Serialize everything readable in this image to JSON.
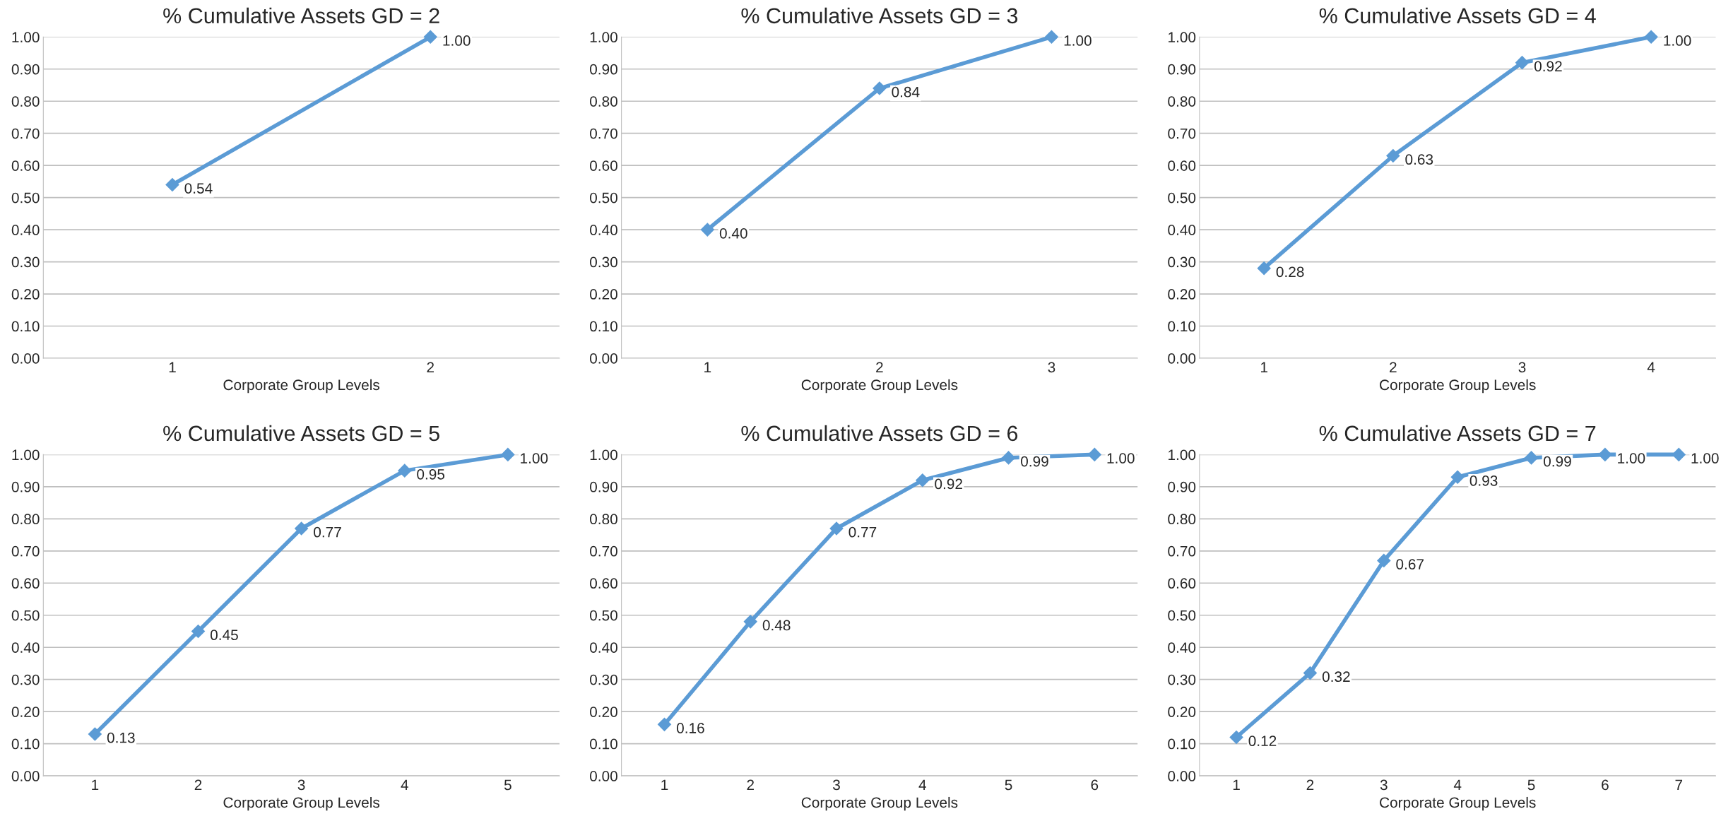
{
  "chart_data": [
    {
      "type": "line",
      "title": "% Cumulative Assets GD = 2",
      "xlabel": "Corporate Group Levels",
      "categories": [
        "1",
        "2"
      ],
      "series": [
        {
          "color": "#5b9bd5",
          "values": [
            0.54,
            1.0
          ],
          "value_labels": [
            "0.54",
            "1.00"
          ]
        }
      ],
      "ylim": [
        0,
        1
      ],
      "yticks": [
        {
          "value": 0,
          "label": "0.00"
        },
        {
          "value": 0.1,
          "label": "0.10"
        },
        {
          "value": 0.2,
          "label": "0.20"
        },
        {
          "value": 0.3,
          "label": "0.30"
        },
        {
          "value": 0.4,
          "label": "0.40"
        },
        {
          "value": 0.5,
          "label": "0.50"
        },
        {
          "value": 0.6,
          "label": "0.60"
        },
        {
          "value": 0.7,
          "label": "0.70"
        },
        {
          "value": 0.8,
          "label": "0.80"
        },
        {
          "value": 0.9,
          "label": "0.90"
        },
        {
          "value": 1,
          "label": "1.00"
        }
      ],
      "grid": "y",
      "marker": "diamond"
    },
    {
      "type": "line",
      "title": "% Cumulative Assets GD = 3",
      "xlabel": "Corporate Group Levels",
      "categories": [
        "1",
        "2",
        "3"
      ],
      "series": [
        {
          "color": "#5b9bd5",
          "values": [
            0.4,
            0.84,
            1.0
          ],
          "value_labels": [
            "0.40",
            "0.84",
            "1.00"
          ]
        }
      ],
      "ylim": [
        0,
        1
      ],
      "yticks": [
        {
          "value": 0,
          "label": "0.00"
        },
        {
          "value": 0.1,
          "label": "0.10"
        },
        {
          "value": 0.2,
          "label": "0.20"
        },
        {
          "value": 0.3,
          "label": "0.30"
        },
        {
          "value": 0.4,
          "label": "0.40"
        },
        {
          "value": 0.5,
          "label": "0.50"
        },
        {
          "value": 0.6,
          "label": "0.60"
        },
        {
          "value": 0.7,
          "label": "0.70"
        },
        {
          "value": 0.8,
          "label": "0.80"
        },
        {
          "value": 0.9,
          "label": "0.90"
        },
        {
          "value": 1,
          "label": "1.00"
        }
      ],
      "grid": "y",
      "marker": "diamond"
    },
    {
      "type": "line",
      "title": "% Cumulative Assets GD = 4",
      "xlabel": "Corporate Group Levels",
      "categories": [
        "1",
        "2",
        "3",
        "4"
      ],
      "series": [
        {
          "color": "#5b9bd5",
          "values": [
            0.28,
            0.63,
            0.92,
            1.0
          ],
          "value_labels": [
            "0.28",
            "0.63",
            "0.92",
            "1.00"
          ]
        }
      ],
      "ylim": [
        0,
        1
      ],
      "yticks": [
        {
          "value": 0,
          "label": "0.00"
        },
        {
          "value": 0.1,
          "label": "0.10"
        },
        {
          "value": 0.2,
          "label": "0.20"
        },
        {
          "value": 0.3,
          "label": "0.30"
        },
        {
          "value": 0.4,
          "label": "0.40"
        },
        {
          "value": 0.5,
          "label": "0.50"
        },
        {
          "value": 0.6,
          "label": "0.60"
        },
        {
          "value": 0.7,
          "label": "0.70"
        },
        {
          "value": 0.8,
          "label": "0.80"
        },
        {
          "value": 0.9,
          "label": "0.90"
        },
        {
          "value": 1,
          "label": "1.00"
        }
      ],
      "grid": "y",
      "marker": "diamond"
    },
    {
      "type": "line",
      "title": "% Cumulative Assets GD = 5",
      "xlabel": "Corporate Group Levels",
      "categories": [
        "1",
        "2",
        "3",
        "4",
        "5"
      ],
      "series": [
        {
          "color": "#5b9bd5",
          "values": [
            0.13,
            0.45,
            0.77,
            0.95,
            1.0
          ],
          "value_labels": [
            "0.13",
            "0.45",
            "0.77",
            "0.95",
            "1.00"
          ]
        }
      ],
      "ylim": [
        0,
        1
      ],
      "yticks": [
        {
          "value": 0,
          "label": "0.00"
        },
        {
          "value": 0.1,
          "label": "0.10"
        },
        {
          "value": 0.2,
          "label": "0.20"
        },
        {
          "value": 0.3,
          "label": "0.30"
        },
        {
          "value": 0.4,
          "label": "0.40"
        },
        {
          "value": 0.5,
          "label": "0.50"
        },
        {
          "value": 0.6,
          "label": "0.60"
        },
        {
          "value": 0.7,
          "label": "0.70"
        },
        {
          "value": 0.8,
          "label": "0.80"
        },
        {
          "value": 0.9,
          "label": "0.90"
        },
        {
          "value": 1,
          "label": "1.00"
        }
      ],
      "grid": "y",
      "marker": "diamond"
    },
    {
      "type": "line",
      "title": "% Cumulative Assets GD = 6",
      "xlabel": "Corporate Group Levels",
      "categories": [
        "1",
        "2",
        "3",
        "4",
        "5",
        "6"
      ],
      "series": [
        {
          "color": "#5b9bd5",
          "values": [
            0.16,
            0.48,
            0.77,
            0.92,
            0.99,
            1.0
          ],
          "value_labels": [
            "0.16",
            "0.48",
            "0.77",
            "0.92",
            "0.99",
            "1.00"
          ]
        }
      ],
      "ylim": [
        0,
        1
      ],
      "yticks": [
        {
          "value": 0,
          "label": "0.00"
        },
        {
          "value": 0.1,
          "label": "0.10"
        },
        {
          "value": 0.2,
          "label": "0.20"
        },
        {
          "value": 0.3,
          "label": "0.30"
        },
        {
          "value": 0.4,
          "label": "0.40"
        },
        {
          "value": 0.5,
          "label": "0.50"
        },
        {
          "value": 0.6,
          "label": "0.60"
        },
        {
          "value": 0.7,
          "label": "0.70"
        },
        {
          "value": 0.8,
          "label": "0.80"
        },
        {
          "value": 0.9,
          "label": "0.90"
        },
        {
          "value": 1,
          "label": "1.00"
        }
      ],
      "grid": "y",
      "marker": "diamond"
    },
    {
      "type": "line",
      "title": "% Cumulative Assets GD = 7",
      "xlabel": "Corporate Group Levels",
      "categories": [
        "1",
        "2",
        "3",
        "4",
        "5",
        "6",
        "7"
      ],
      "series": [
        {
          "color": "#5b9bd5",
          "values": [
            0.12,
            0.32,
            0.67,
            0.93,
            0.99,
            1.0,
            1.0
          ],
          "value_labels": [
            "0.12",
            "0.32",
            "0.67",
            "0.93",
            "0.99",
            "1.00",
            "1.00"
          ]
        }
      ],
      "ylim": [
        0,
        1
      ],
      "yticks": [
        {
          "value": 0,
          "label": "0.00"
        },
        {
          "value": 0.1,
          "label": "0.10"
        },
        {
          "value": 0.2,
          "label": "0.20"
        },
        {
          "value": 0.3,
          "label": "0.30"
        },
        {
          "value": 0.4,
          "label": "0.40"
        },
        {
          "value": 0.5,
          "label": "0.50"
        },
        {
          "value": 0.6,
          "label": "0.60"
        },
        {
          "value": 0.7,
          "label": "0.70"
        },
        {
          "value": 0.8,
          "label": "0.80"
        },
        {
          "value": 0.9,
          "label": "0.90"
        },
        {
          "value": 1,
          "label": "1.00"
        }
      ],
      "grid": "y",
      "marker": "diamond"
    }
  ]
}
